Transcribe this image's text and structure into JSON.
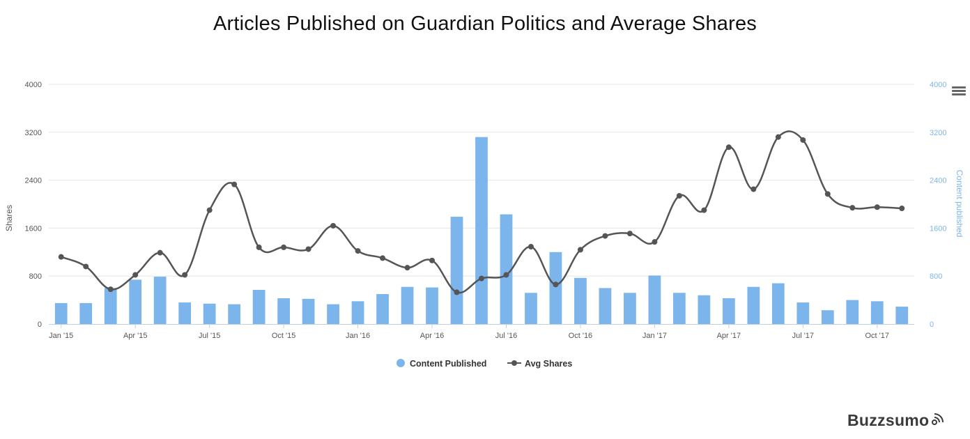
{
  "title": "Articles Published on Guardian Politics and Average Shares",
  "brand": {
    "name": "Buzzsumo",
    "icon": "signal-waves-icon"
  },
  "menu": {
    "icon": "hamburger-menu-icon"
  },
  "colors": {
    "bars": "#7cb5ec",
    "line": "#555555",
    "grid": "#e6e6e6",
    "right_axis": "#7cb5ec"
  },
  "chart_data": {
    "type": "bar",
    "title": "Articles Published on Guardian Politics and Average Shares",
    "categories": [
      "Jan '15",
      "Feb '15",
      "Mar '15",
      "Apr '15",
      "May '15",
      "Jun '15",
      "Jul '15",
      "Aug '15",
      "Sep '15",
      "Oct '15",
      "Nov '15",
      "Dec '15",
      "Jan '16",
      "Feb '16",
      "Mar '16",
      "Apr '16",
      "May '16",
      "Jun '16",
      "Jul '16",
      "Aug '16",
      "Sep '16",
      "Oct '16",
      "Nov '16",
      "Dec '16",
      "Jan '17",
      "Feb '17",
      "Mar '17",
      "Apr '17",
      "May '17",
      "Jun '17",
      "Jul '17",
      "Aug '17",
      "Sep '17",
      "Oct '17",
      "Nov '17"
    ],
    "x_tick_labels": [
      "Jan '15",
      "Apr '15",
      "Jul '15",
      "Oct '15",
      "Jan '16",
      "Apr '16",
      "Jul '16",
      "Oct '16",
      "Jan '17",
      "Apr '17",
      "Jul '17",
      "Oct '17"
    ],
    "left_axis": {
      "label": "Shares",
      "ylim": [
        0,
        4000
      ],
      "ticks": [
        "0",
        "800",
        "1600",
        "2400",
        "3200",
        "4000"
      ]
    },
    "right_axis": {
      "label": "Content published",
      "ylim": [
        0,
        4000
      ],
      "ticks": [
        "0",
        "800",
        "1600",
        "2400",
        "3200",
        "4000"
      ]
    },
    "grid": true,
    "legend_position": "bottom-center",
    "series": [
      {
        "name": "Content Published",
        "type": "bar",
        "axis": "right",
        "values": [
          350,
          350,
          600,
          740,
          790,
          360,
          340,
          330,
          570,
          430,
          420,
          330,
          380,
          500,
          620,
          610,
          1790,
          3120,
          1830,
          520,
          1200,
          770,
          600,
          520,
          810,
          520,
          480,
          430,
          620,
          680,
          360,
          230,
          400,
          380,
          290
        ]
      },
      {
        "name": "Avg Shares",
        "type": "line",
        "axis": "left",
        "values": [
          1120,
          960,
          580,
          820,
          1190,
          820,
          1900,
          2330,
          1280,
          1280,
          1250,
          1640,
          1220,
          1100,
          940,
          1060,
          530,
          760,
          820,
          1290,
          660,
          1240,
          1470,
          1510,
          1370,
          2140,
          1900,
          2950,
          2250,
          3120,
          3070,
          2170,
          1940,
          1950,
          1930
        ]
      }
    ]
  }
}
